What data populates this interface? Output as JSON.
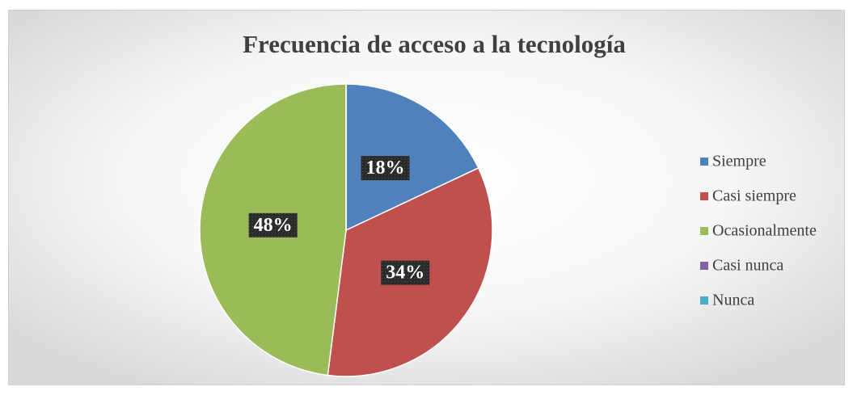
{
  "chart_data": {
    "type": "pie",
    "title": "Frecuencia de acceso a la tecnología",
    "categories": [
      "Siempre",
      "Casi siempre",
      "Ocasionalmente",
      "Casi nunca",
      "Nunca"
    ],
    "values": [
      18,
      34,
      48,
      0,
      0
    ],
    "value_labels": [
      "18%",
      "34%",
      "48%",
      null,
      null
    ],
    "colors": [
      "#4f81bd",
      "#c0504d",
      "#9bbb59",
      "#8064a2",
      "#4bacc6"
    ],
    "legend": "right"
  }
}
